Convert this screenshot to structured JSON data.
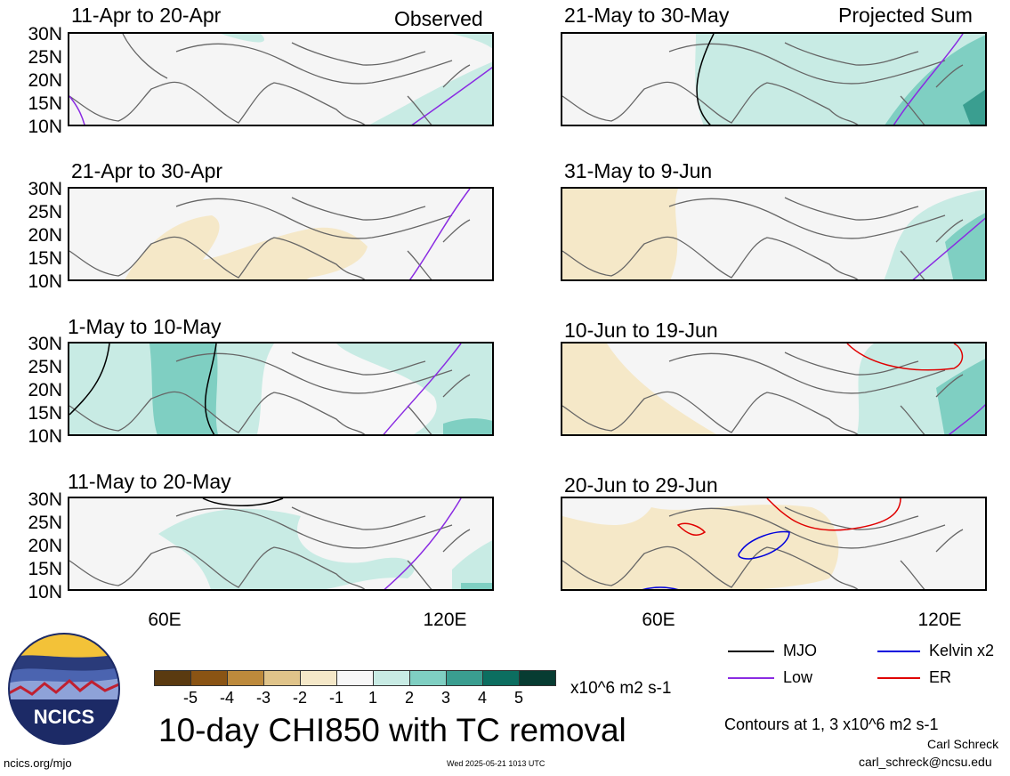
{
  "chart_data": [
    {
      "type": "heatmap",
      "title": "11-Apr to 20-Apr",
      "corner_label": "Observed"
    },
    {
      "type": "heatmap",
      "title": "21-Apr to 30-Apr",
      "corner_label": ""
    },
    {
      "type": "heatmap",
      "title": "1-May to 10-May",
      "corner_label": ""
    },
    {
      "type": "heatmap",
      "title": "11-May to 20-May",
      "corner_label": ""
    },
    {
      "type": "heatmap",
      "title": "21-May to 30-May",
      "corner_label": "Projected Sum"
    },
    {
      "type": "heatmap",
      "title": "31-May to 9-Jun",
      "corner_label": ""
    },
    {
      "type": "heatmap",
      "title": "10-Jun to 19-Jun",
      "corner_label": ""
    },
    {
      "type": "heatmap",
      "title": "20-Jun to 29-Jun",
      "corner_label": ""
    }
  ],
  "axes": {
    "lat_labels": [
      "30N",
      "25N",
      "20N",
      "15N",
      "10N"
    ],
    "lon_labels": [
      "60E",
      "120E"
    ]
  },
  "colorbar": {
    "labels": [
      "-5",
      "-4",
      "-3",
      "-2",
      "-1",
      "1",
      "2",
      "3",
      "4",
      "5"
    ],
    "colors": [
      "#5a3a10",
      "#8a5414",
      "#bd8a3c",
      "#e0c48a",
      "#f5e8c8",
      "#f7f7f7",
      "#c8ebe4",
      "#7fcfc2",
      "#3a9e90",
      "#0c6e60",
      "#073c32"
    ],
    "units": "x10^6 m2 s-1"
  },
  "main_title": "10-day CHI850 with TC removal",
  "legend": {
    "items": [
      {
        "label": "MJO",
        "color": "#000000"
      },
      {
        "label": "Kelvin x2",
        "color": "#0000dd"
      },
      {
        "label": "Low",
        "color": "#8a2be2"
      },
      {
        "label": "ER",
        "color": "#e00000"
      }
    ],
    "contours_note": "Contours at 1, 3 x10^6 m2 s-1"
  },
  "logo": {
    "text": "NCICS"
  },
  "footer": {
    "url": "ncics.org/mjo",
    "timestamp": "Wed 2025-05-21 1013 UTC",
    "author": "Carl Schreck",
    "email": "carl_schreck@ncsu.edu"
  }
}
